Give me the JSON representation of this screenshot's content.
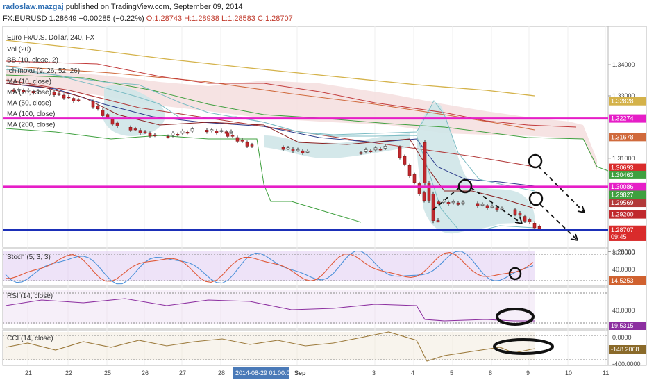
{
  "header": {
    "author": "radoslaw.mazgaj",
    "published": "published on TradingView.com, September 09, 2014",
    "symbol": "FX:EURUSD",
    "last": "1.28649",
    "change": "−0.00285 (−0.22%)",
    "open": "O:1.28743",
    "high": "H:1.28938",
    "low": "L:1.28583",
    "close": "C:1.28707"
  },
  "main_pane": {
    "title": "Euro Fx/U.S. Dollar, 240, FX",
    "indicators": [
      "Vol (20)",
      "BB (10, close, 2)",
      "Ichimoku (9, 26, 52, 26)",
      "MA (10, close)",
      "MA (20, close)",
      "MA (50, close)",
      "MA (100, close)",
      "MA (200, close)"
    ],
    "axis_ticks": [
      {
        "label": "1.34000",
        "v": 1.34
      },
      {
        "label": "1.33000",
        "v": 1.33
      },
      {
        "label": "1.31000",
        "v": 1.31
      },
      {
        "label": "1.28000",
        "v": 1.28
      }
    ],
    "price_tags": [
      {
        "label": "1.32828",
        "v": 1.32828,
        "color": "#d4b24a"
      },
      {
        "label": "1.32274",
        "v": 1.32274,
        "color": "#e61ec7"
      },
      {
        "label": "1.31678",
        "v": 1.31678,
        "color": "#d06a3c"
      },
      {
        "label": "1.30693",
        "v": 1.30693,
        "color": "#d92b2b"
      },
      {
        "label": "1.30463",
        "v": 1.30463,
        "color": "#3fa03f"
      },
      {
        "label": "1.30086",
        "v": 1.30086,
        "color": "#e61ec7"
      },
      {
        "label": "1.29827",
        "v": 1.29827,
        "color": "#3fa03f"
      },
      {
        "label": "1.29569",
        "v": 1.29569,
        "color": "#b23a3a"
      },
      {
        "label": "1.29200",
        "v": 1.292,
        "color": "#c0282d"
      },
      {
        "label": "1.28707",
        "v": 1.28707,
        "color": "#d92b2b"
      },
      {
        "label": "09:45",
        "v": 1.2848,
        "color": "#d92b2b"
      }
    ],
    "hlines": [
      {
        "v": 1.32274,
        "color": "#e61ec7"
      },
      {
        "v": 1.30086,
        "color": "#e61ec7"
      },
      {
        "v": 1.28707,
        "color": "#1b2fb8"
      }
    ]
  },
  "stoch_pane": {
    "title": "Stoch (5, 3, 3)",
    "ticks": [
      {
        "label": "80.0000",
        "v": 80
      },
      {
        "label": "40.0000",
        "v": 40
      }
    ],
    "tag": "14.5253",
    "tag_v": 14.5253,
    "tag_color": "#d0612f"
  },
  "rsi_pane": {
    "title": "RSI (14, close)",
    "ticks": [
      {
        "label": "40.0000",
        "v": 40
      }
    ],
    "tag": "19.5315",
    "tag_v": 19.5315,
    "tag_color": "#8c2fa0"
  },
  "cci_pane": {
    "title": "CCI (14, close)",
    "ticks": [
      {
        "label": "0.0000",
        "v": 0
      },
      {
        "label": "-400.0000",
        "v": -400
      }
    ],
    "tag": "-148.2068",
    "tag_v": -148.2068,
    "tag_color": "#8a6a2a"
  },
  "time_axis": {
    "labels": [
      "21",
      "22",
      "25",
      "26",
      "27",
      "28",
      "Sep",
      "3",
      "4",
      "5",
      "8",
      "9",
      "10",
      "11"
    ],
    "cursor_label": "2014-08-29 01:00:00"
  },
  "chart_data": {
    "type": "candlestick",
    "title": "Euro Fx/U.S. Dollar, 240, FX",
    "x_categories": [
      "21",
      "22",
      "25",
      "26",
      "27",
      "28",
      "Sep",
      "3",
      "4",
      "5",
      "8",
      "9",
      "10",
      "11"
    ],
    "y_axis_ticks": [
      1.28,
      1.31,
      1.33,
      1.34
    ],
    "close_approx": [
      {
        "x": "21",
        "v": 1.3312
      },
      {
        "x": "22",
        "v": 1.3282
      },
      {
        "x": "25",
        "v": 1.3199
      },
      {
        "x": "26",
        "v": 1.317
      },
      {
        "x": "27",
        "v": 1.319
      },
      {
        "x": "28",
        "v": 1.3182
      },
      {
        "x": "29",
        "v": 1.3135
      },
      {
        "x": "Sep",
        "v": 1.3118
      },
      {
        "x": "3",
        "v": 1.3135
      },
      {
        "x": "4",
        "v": 1.296
      },
      {
        "x": "5",
        "v": 1.2955
      },
      {
        "x": "8",
        "v": 1.2935
      },
      {
        "x": "9",
        "v": 1.287
      }
    ],
    "horizontal_levels": [
      1.32274,
      1.30086,
      1.28707
    ],
    "last": {
      "open": 1.28743,
      "high": 1.28938,
      "low": 1.28583,
      "close": 1.28707
    }
  }
}
